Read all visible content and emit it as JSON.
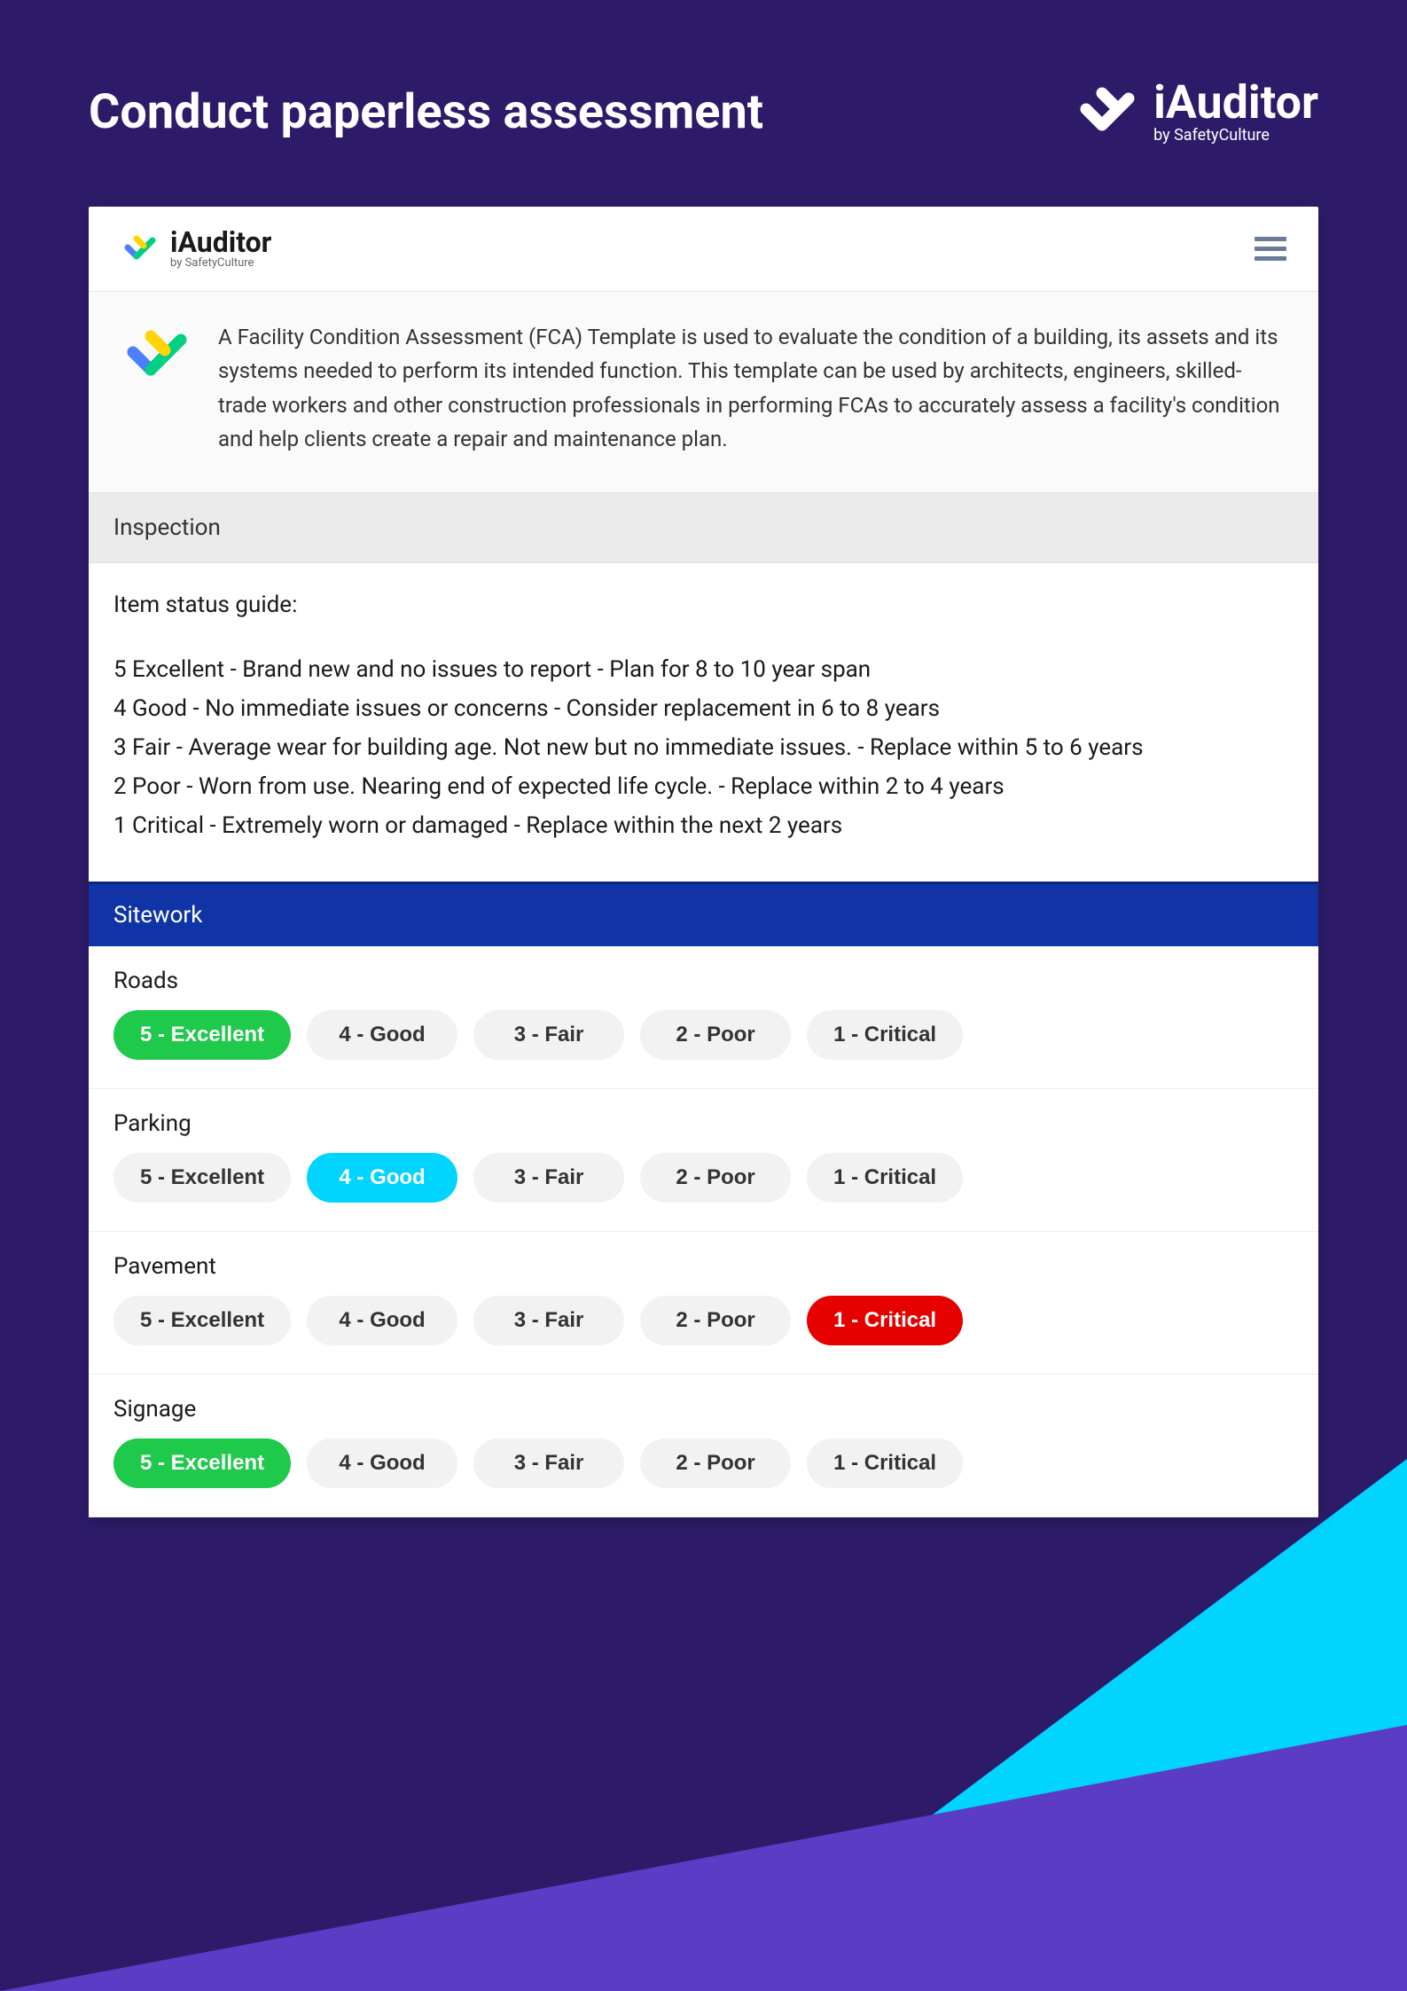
{
  "colors": {
    "page_bg": "#2d1b69",
    "accent_cyan": "#00d4ff",
    "accent_purple": "#5b3cc4",
    "card_bg": "#ffffff",
    "category_bg": "#1033a6",
    "pill_default_bg": "#f2f2f2",
    "pill_green": "#1ec94b",
    "pill_cyan": "#00d4ff",
    "pill_red": "#e60000"
  },
  "header": {
    "title": "Conduct paperless assessment",
    "logo_name": "iAuditor",
    "logo_sub": "by SafetyCulture"
  },
  "card": {
    "logo_name": "iAuditor",
    "logo_sub": "by SafetyCulture",
    "description": "A Facility Condition Assessment (FCA) Template is used to evaluate the condition of a building, its assets and its systems needed to perform its intended function. This template can be used by architects, engineers, skilled-trade workers and other construction professionals in performing FCAs to accurately assess a facility's condition and help clients create a repair and maintenance plan."
  },
  "inspection": {
    "label": "Inspection",
    "guide_title": "Item status guide:",
    "guide_lines": [
      "5 Excellent - Brand new and no issues to report - Plan for 8 to 10 year span",
      "4 Good - No immediate issues or concerns - Consider replacement in 6 to 8 years",
      "3 Fair - Average wear for building age. Not new but no immediate issues. - Replace within 5 to 6 years",
      "2 Poor - Worn from use. Nearing end of expected life cycle. - Replace within 2 to 4 years",
      "1 Critical - Extremely worn or damaged - Replace within the next 2 years"
    ]
  },
  "category": {
    "label": "Sitework"
  },
  "rating_options": [
    "5 - Excellent",
    "4 - Good",
    "3 - Fair",
    "2 - Poor",
    "1 - Critical"
  ],
  "items": [
    {
      "label": "Roads",
      "selected_index": 0,
      "selected_style": "green"
    },
    {
      "label": "Parking",
      "selected_index": 1,
      "selected_style": "cyan"
    },
    {
      "label": "Pavement",
      "selected_index": 4,
      "selected_style": "red"
    },
    {
      "label": "Signage",
      "selected_index": 0,
      "selected_style": "green"
    }
  ]
}
